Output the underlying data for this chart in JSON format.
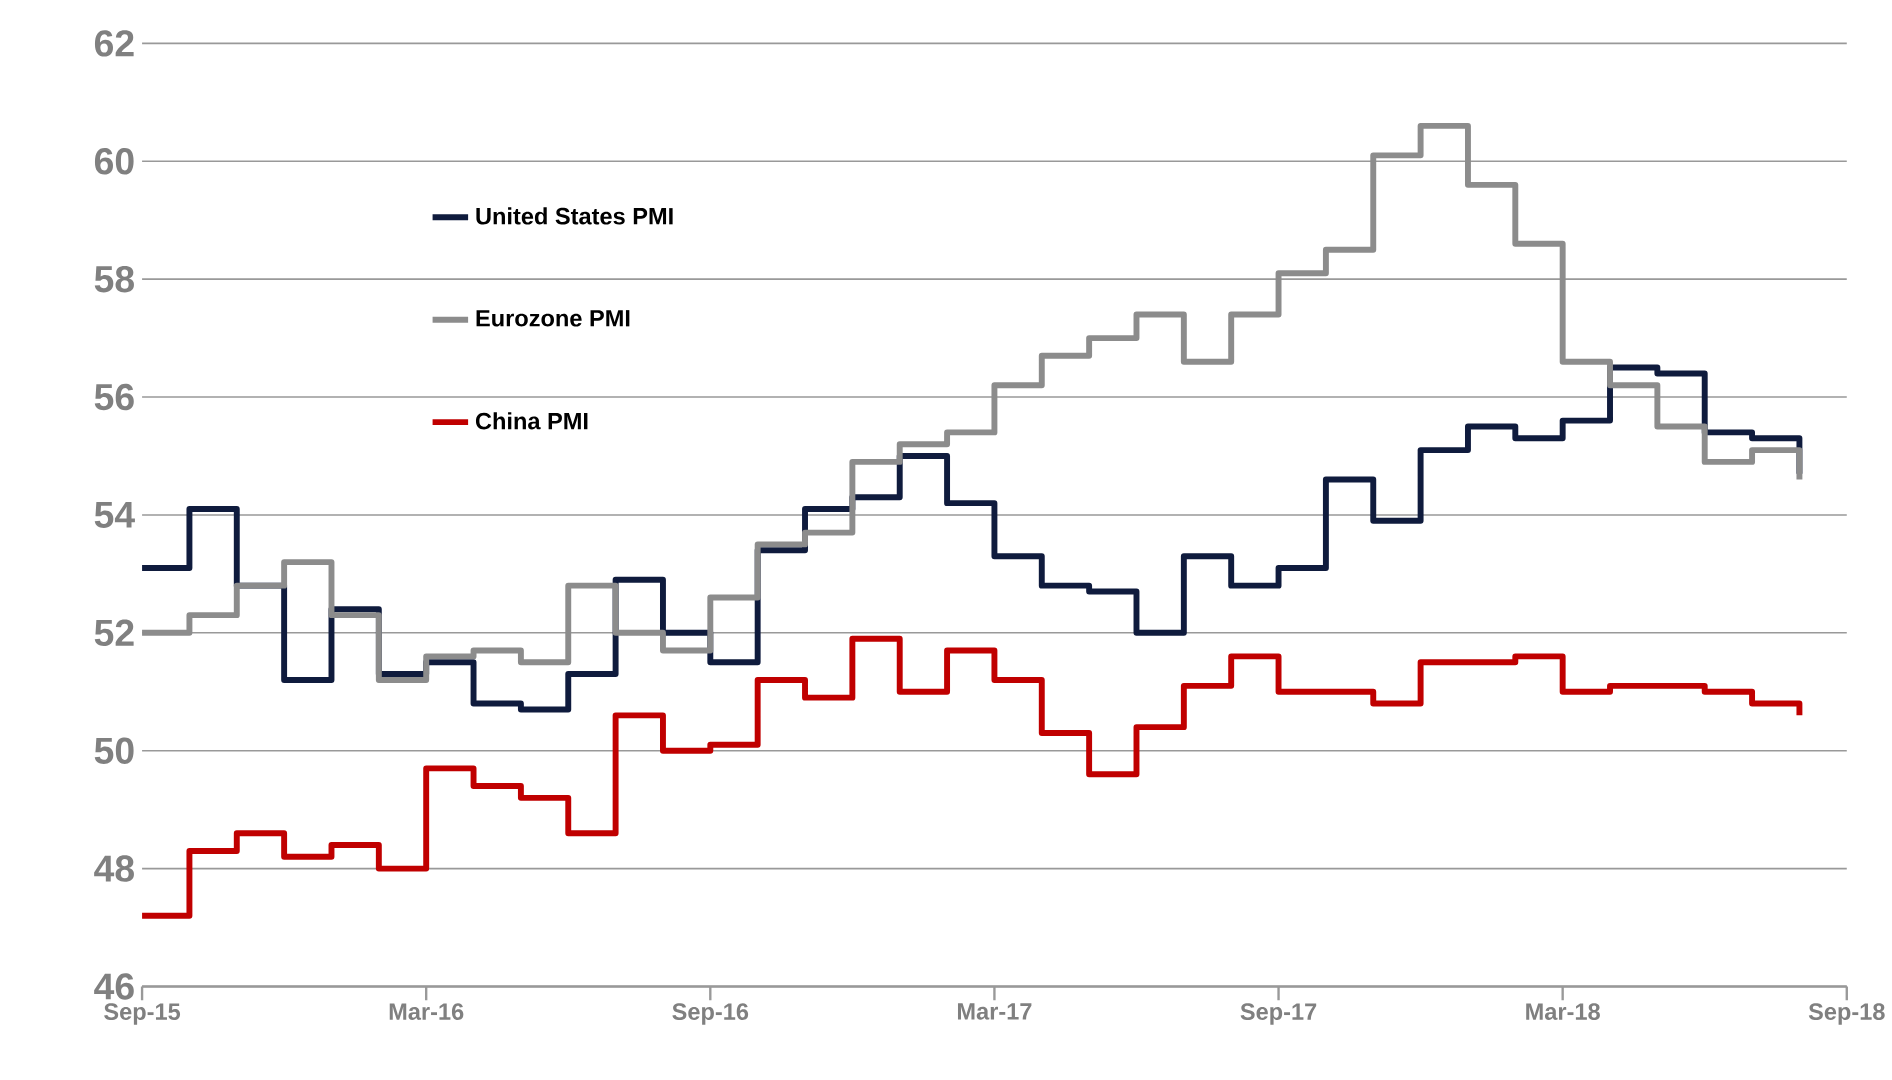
{
  "chart_data": {
    "type": "step",
    "x": [
      "2015-09",
      "2015-10",
      "2015-11",
      "2015-12",
      "2016-01",
      "2016-02",
      "2016-03",
      "2016-04",
      "2016-05",
      "2016-06",
      "2016-07",
      "2016-08",
      "2016-09",
      "2016-10",
      "2016-11",
      "2016-12",
      "2017-01",
      "2017-02",
      "2017-03",
      "2017-04",
      "2017-05",
      "2017-06",
      "2017-07",
      "2017-08",
      "2017-09",
      "2017-10",
      "2017-11",
      "2017-12",
      "2018-01",
      "2018-02",
      "2018-03",
      "2018-04",
      "2018-05",
      "2018-06",
      "2018-07",
      "2018-08"
    ],
    "series": [
      {
        "name": "United States PMI",
        "color": "#0f1b3d",
        "values": [
          53.1,
          54.1,
          52.8,
          51.2,
          52.4,
          51.3,
          51.5,
          50.8,
          50.7,
          51.3,
          52.9,
          52.0,
          51.5,
          53.4,
          54.1,
          54.3,
          55.0,
          54.2,
          53.3,
          52.8,
          52.7,
          52.0,
          53.3,
          52.8,
          53.1,
          54.6,
          53.9,
          55.1,
          55.5,
          55.3,
          55.6,
          56.5,
          56.4,
          55.4,
          55.3,
          54.7
        ]
      },
      {
        "name": "Eurozone PMI",
        "color": "#8c8c8c",
        "values": [
          52.0,
          52.3,
          52.8,
          53.2,
          52.3,
          51.2,
          51.6,
          51.7,
          51.5,
          52.8,
          52.0,
          51.7,
          52.6,
          53.5,
          53.7,
          54.9,
          55.2,
          55.4,
          56.2,
          56.7,
          57.0,
          57.4,
          56.6,
          57.4,
          58.1,
          58.5,
          60.1,
          60.6,
          59.6,
          58.6,
          56.6,
          56.2,
          55.5,
          54.9,
          55.1,
          54.6
        ]
      },
      {
        "name": "China PMI",
        "color": "#c00000",
        "values": [
          47.2,
          48.3,
          48.6,
          48.2,
          48.4,
          48.0,
          49.7,
          49.4,
          49.2,
          48.6,
          50.6,
          50.0,
          50.1,
          51.2,
          50.9,
          51.9,
          51.0,
          51.7,
          51.2,
          50.3,
          49.6,
          50.4,
          51.1,
          51.6,
          51.0,
          51.0,
          50.8,
          51.5,
          51.5,
          51.6,
          51.0,
          51.1,
          51.1,
          51.0,
          50.8,
          50.6
        ]
      }
    ],
    "xlim": [
      "2015-09",
      "2018-09"
    ],
    "xticks": [
      {
        "value": "2015-09",
        "label": "Sep-15"
      },
      {
        "value": "2016-03",
        "label": "Mar-16"
      },
      {
        "value": "2016-09",
        "label": "Sep-16"
      },
      {
        "value": "2017-03",
        "label": "Mar-17"
      },
      {
        "value": "2017-09",
        "label": "Sep-17"
      },
      {
        "value": "2018-03",
        "label": "Mar-18"
      },
      {
        "value": "2018-09",
        "label": "Sep-18"
      }
    ],
    "ylim": [
      46,
      62
    ],
    "yticks": [
      46,
      48,
      50,
      52,
      54,
      56,
      58,
      60,
      62
    ],
    "grid": "y",
    "legend": "top left",
    "marker": "none",
    "line_style": "solid"
  }
}
